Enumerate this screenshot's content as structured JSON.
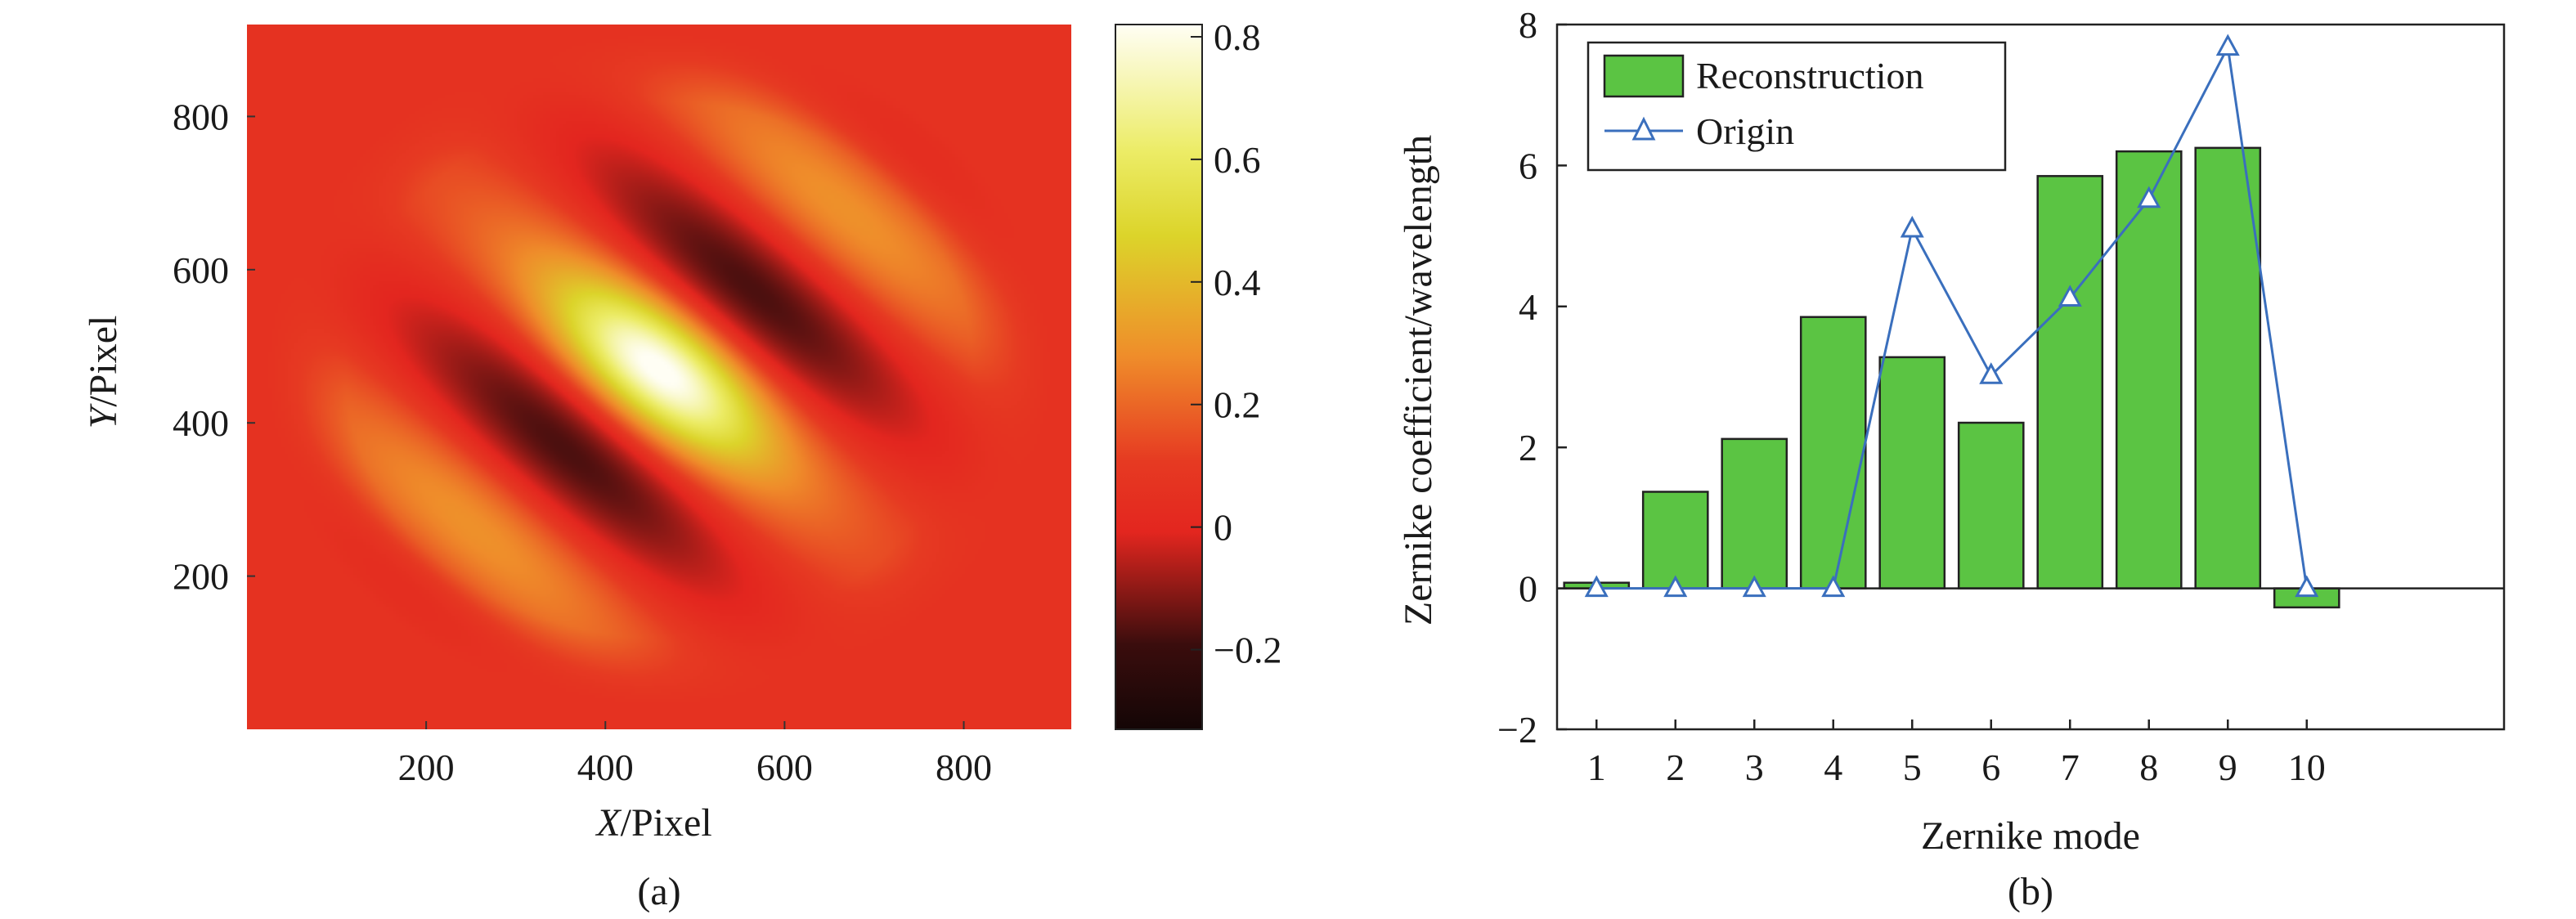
{
  "figure": {
    "panel_a_caption": "(a)",
    "panel_b_caption": "(b)"
  },
  "chart_data": [
    {
      "type": "heatmap",
      "xlabel_italic": "X",
      "xlabel_rest": "/Pixel",
      "ylabel_italic": "Y",
      "ylabel_rest": "/Pixel",
      "xlim": [
        0,
        920
      ],
      "ylim": [
        0,
        920
      ],
      "x_ticks": [
        200,
        400,
        600,
        800
      ],
      "y_ticks": [
        200,
        400,
        600,
        800
      ],
      "colorbar": {
        "range": [
          -0.33,
          0.82
        ],
        "ticks": [
          -0.2,
          0,
          0.2,
          0.4,
          0.6,
          0.8
        ],
        "tick_labels": [
          "−0.2",
          "0",
          "0.2",
          "0.4",
          "0.6",
          "0.8"
        ],
        "colormap": "hot"
      },
      "background_value": 0.06
    },
    {
      "type": "bar",
      "xlabel": "Zernike mode",
      "ylabel": "Zernike coefficient/wavelength",
      "categories": [
        "1",
        "2",
        "3",
        "4",
        "5",
        "6",
        "7",
        "8",
        "9",
        "10"
      ],
      "xlim": [
        -0.5,
        11.5
      ],
      "ylim": [
        -2,
        8
      ],
      "y_ticks": [
        -2,
        0,
        2,
        4,
        6,
        8
      ],
      "y_tick_labels": [
        "−2",
        "0",
        "2",
        "4",
        "6",
        "8"
      ],
      "series": [
        {
          "name": "Reconstruction",
          "kind": "bar",
          "color": "#5bc443",
          "values": [
            0.08,
            1.37,
            2.12,
            3.85,
            3.28,
            2.35,
            5.85,
            6.2,
            6.25,
            -0.27
          ]
        },
        {
          "name": "Origin",
          "kind": "line",
          "marker": "triangle",
          "color": "#3a6fbd",
          "values": [
            0,
            0,
            0,
            0,
            5.1,
            3.02,
            4.12,
            5.52,
            7.68,
            0
          ]
        }
      ],
      "legend_position": "top-left"
    }
  ]
}
